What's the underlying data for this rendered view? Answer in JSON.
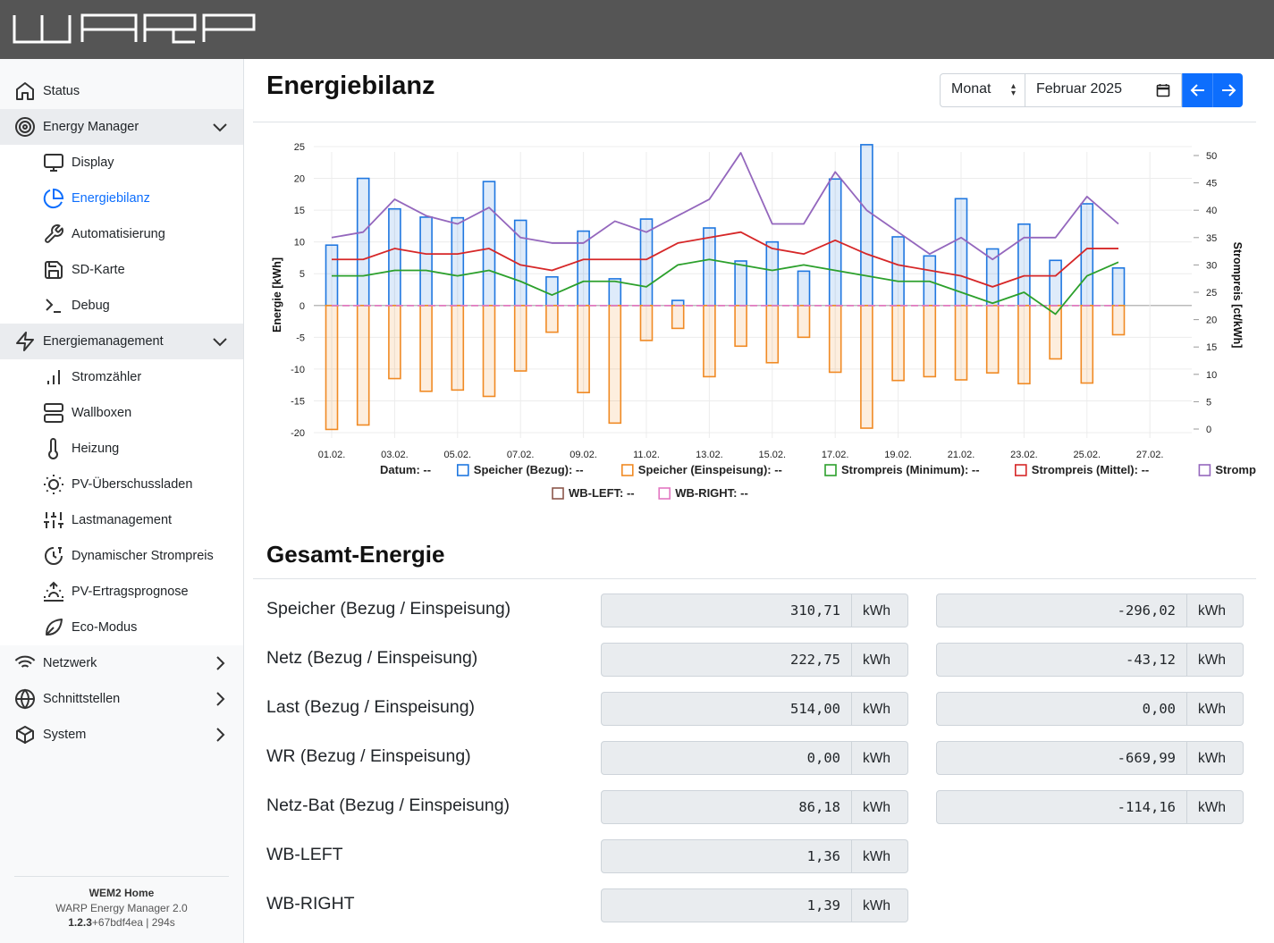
{
  "app": {
    "logo_text": "WARP"
  },
  "sidebar": {
    "items": [
      {
        "label": "Status",
        "icon": "home-icon"
      },
      {
        "label": "Energy Manager",
        "icon": "energy-manager-icon"
      },
      {
        "label": "Display",
        "icon": "monitor-icon"
      },
      {
        "label": "Energiebilanz",
        "icon": "pie-chart-icon"
      },
      {
        "label": "Automatisierung",
        "icon": "wrench-icon"
      },
      {
        "label": "SD-Karte",
        "icon": "save-icon"
      },
      {
        "label": "Debug",
        "icon": "terminal-icon"
      },
      {
        "label": "Energiemanagement",
        "icon": "zap-icon"
      },
      {
        "label": "Stromzähler",
        "icon": "bar-chart-icon"
      },
      {
        "label": "Wallboxen",
        "icon": "server-icon"
      },
      {
        "label": "Heizung",
        "icon": "thermometer-icon"
      },
      {
        "label": "PV-Überschussladen",
        "icon": "sun-icon"
      },
      {
        "label": "Lastmanagement",
        "icon": "sliders-icon"
      },
      {
        "label": "Dynamischer Strompreis",
        "icon": "price-clock-icon"
      },
      {
        "label": "PV-Ertragsprognose",
        "icon": "sunrise-icon"
      },
      {
        "label": "Eco-Modus",
        "icon": "leaf-icon"
      },
      {
        "label": "Netzwerk",
        "icon": "wifi-icon"
      },
      {
        "label": "Schnittstellen",
        "icon": "globe-icon"
      },
      {
        "label": "System",
        "icon": "box-icon"
      }
    ],
    "footer": {
      "device_name": "WEM2 Home",
      "product": "WARP Energy Manager 2.0",
      "version": "1.2.3",
      "build": "+67bdf4ea | 294s"
    }
  },
  "main": {
    "title": "Energiebilanz",
    "period_select": {
      "value": "Monat"
    },
    "date_input": {
      "value": "Februar 2025"
    }
  },
  "chart_data": {
    "type": "bar",
    "x": [
      "01.02.",
      "02.02.",
      "03.02.",
      "04.02.",
      "05.02.",
      "06.02.",
      "07.02.",
      "08.02.",
      "09.02.",
      "10.02.",
      "11.02.",
      "12.02.",
      "13.02.",
      "14.02.",
      "15.02.",
      "16.02.",
      "17.02.",
      "18.02.",
      "19.02.",
      "20.02.",
      "21.02.",
      "22.02.",
      "23.02.",
      "24.02.",
      "25.02.",
      "26.02."
    ],
    "x_ticks": [
      "01.02.",
      "03.02.",
      "05.02.",
      "07.02.",
      "09.02.",
      "11.02.",
      "13.02.",
      "15.02.",
      "17.02.",
      "19.02.",
      "21.02.",
      "23.02.",
      "25.02.",
      "27.02."
    ],
    "ylabel": "Energie [kWh]",
    "ylim": [
      -20,
      25
    ],
    "y_ticks": [
      -20,
      -15,
      -10,
      -5,
      0,
      5,
      10,
      15,
      20,
      25
    ],
    "y2label": "Strompreis [ct/kWh]",
    "y2lim": [
      0,
      50
    ],
    "y2_ticks": [
      0,
      5,
      10,
      15,
      20,
      25,
      30,
      35,
      40,
      45,
      50
    ],
    "grid": true,
    "legend_position": "bottom",
    "series": [
      {
        "name": "Speicher (Bezug):",
        "kind": "bar",
        "axis": "left",
        "color": "#1f77e0",
        "values": [
          9.5,
          20,
          15.2,
          13.9,
          13.8,
          19.5,
          13.4,
          4.5,
          11.7,
          4.2,
          13.6,
          0.8,
          12.2,
          7,
          10,
          5.4,
          19.9,
          25.3,
          10.8,
          7.8,
          16.8,
          8.9,
          12.8,
          7.1,
          16,
          5.9
        ]
      },
      {
        "name": "Speicher (Einspeisung):",
        "kind": "bar",
        "axis": "left",
        "color": "#f08a24",
        "values": [
          -19.5,
          -18.8,
          -11.5,
          -13.5,
          -13.3,
          -14.3,
          -10.3,
          -4.2,
          -13.7,
          -18.5,
          -5.5,
          -3.6,
          -11.2,
          -6.4,
          -9,
          -5,
          -10.5,
          -19.3,
          -11.8,
          -11.2,
          -11.7,
          -10.6,
          -12.3,
          -8.4,
          -12.2,
          -4.6
        ]
      },
      {
        "name": "Strompreis (Minimum):",
        "kind": "line",
        "axis": "right",
        "color": "#2ca02c",
        "values": [
          28,
          28,
          29,
          29,
          28,
          29,
          27,
          24.5,
          27,
          27,
          26,
          30,
          31,
          30,
          29,
          30,
          29,
          28,
          27,
          27,
          25,
          23,
          25,
          21,
          28,
          30.5
        ]
      },
      {
        "name": "Strompreis (Mittel):",
        "kind": "line",
        "axis": "right",
        "color": "#d62728",
        "values": [
          31,
          31,
          33,
          32,
          32,
          33,
          30,
          29,
          31,
          31,
          31,
          34,
          35,
          36,
          33,
          32,
          34.5,
          32,
          30,
          29,
          28,
          26,
          28,
          28,
          33,
          33
        ]
      },
      {
        "name": "Strompreis (Maximum):",
        "kind": "line",
        "axis": "right",
        "color": "#9467bd",
        "values": [
          35,
          36,
          42,
          39,
          37.5,
          40.5,
          35,
          34,
          34,
          38,
          36,
          39,
          42,
          50.5,
          37.5,
          37.5,
          47,
          40,
          36,
          32,
          35,
          31,
          35,
          35,
          42.5,
          37.5
        ]
      },
      {
        "name": "WB-LEFT:",
        "kind": "line",
        "axis": "left",
        "color": "#8c564b",
        "values": [
          0,
          0,
          0,
          0,
          0,
          0,
          0,
          0,
          0,
          0,
          0,
          0,
          0,
          0,
          0,
          0,
          0,
          0,
          0,
          0,
          0,
          0,
          0,
          0,
          0,
          0
        ]
      },
      {
        "name": "WB-RIGHT:",
        "kind": "line",
        "axis": "left",
        "color": "#e377c2",
        "values": [
          0,
          0,
          0,
          0,
          0,
          0,
          0,
          0,
          0,
          0,
          0,
          0,
          0,
          0,
          0,
          0,
          0,
          0,
          0,
          0,
          0,
          0,
          0,
          0,
          0,
          0
        ]
      }
    ],
    "legend": [
      {
        "label": "Datum:",
        "value": "--",
        "color": null
      },
      {
        "label": "Speicher (Bezug):",
        "value": "--",
        "color": "#1f77e0"
      },
      {
        "label": "Speicher (Einspeisung):",
        "value": "--",
        "color": "#f08a24"
      },
      {
        "label": "Strompreis (Minimum):",
        "value": "--",
        "color": "#2ca02c"
      },
      {
        "label": "Strompreis (Mittel):",
        "value": "--",
        "color": "#d62728"
      },
      {
        "label": "Strompreis (Maximum):",
        "value": "--",
        "color": "#9467bd"
      },
      {
        "label": "WB-LEFT:",
        "value": "--",
        "color": "#8c564b"
      },
      {
        "label": "WB-RIGHT:",
        "value": "--",
        "color": "#e377c2"
      }
    ]
  },
  "totals": {
    "title": "Gesamt-Energie",
    "unit": "kWh",
    "rows": [
      {
        "label": "Speicher (Bezug / Einspeisung)",
        "import": "310,71",
        "export": "-296,02"
      },
      {
        "label": "Netz (Bezug / Einspeisung)",
        "import": "222,75",
        "export": "-43,12"
      },
      {
        "label": "Last (Bezug / Einspeisung)",
        "import": "514,00",
        "export": "0,00"
      },
      {
        "label": "WR (Bezug / Einspeisung)",
        "import": "0,00",
        "export": "-669,99"
      },
      {
        "label": "Netz-Bat (Bezug / Einspeisung)",
        "import": "86,18",
        "export": "-114,16"
      },
      {
        "label": "WB-LEFT",
        "import": "1,36"
      },
      {
        "label": "WB-RIGHT",
        "import": "1,39"
      }
    ]
  }
}
